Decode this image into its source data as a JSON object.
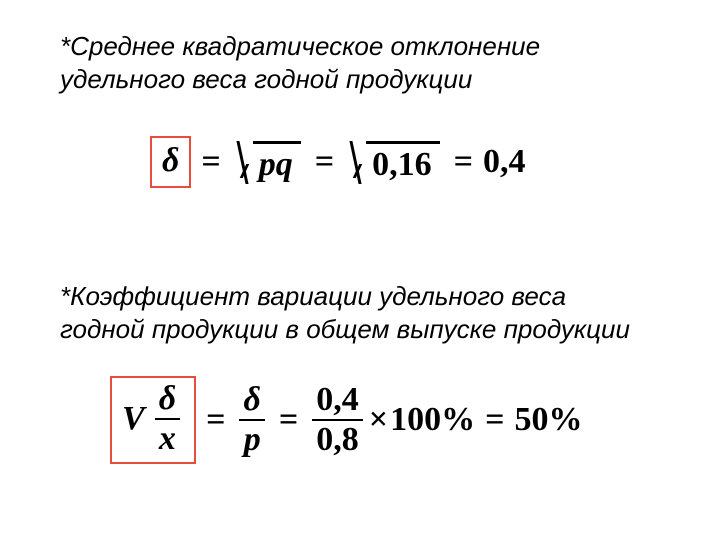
{
  "colors": {
    "highlight_border": "#e84c3d",
    "text": "#000000",
    "background": "#ffffff"
  },
  "caption1_line1": "*Среднее квадратическое отклонение",
  "caption1_line2": "удельного веса годной продукции",
  "caption2_line1": "*Коэффициент вариации удельного веса",
  "caption2_line2": "годной продукции в общем выпуске продукции",
  "f1": {
    "delta": "δ",
    "eq": "=",
    "pq": "pq",
    "val1": "0,16",
    "val2": "0,4"
  },
  "f2": {
    "V": "V",
    "delta": "δ",
    "x": "x",
    "eq": "=",
    "p": "p",
    "num": "0,4",
    "den": "0,8",
    "times": "×",
    "pct": "100%",
    "result": "50%"
  }
}
